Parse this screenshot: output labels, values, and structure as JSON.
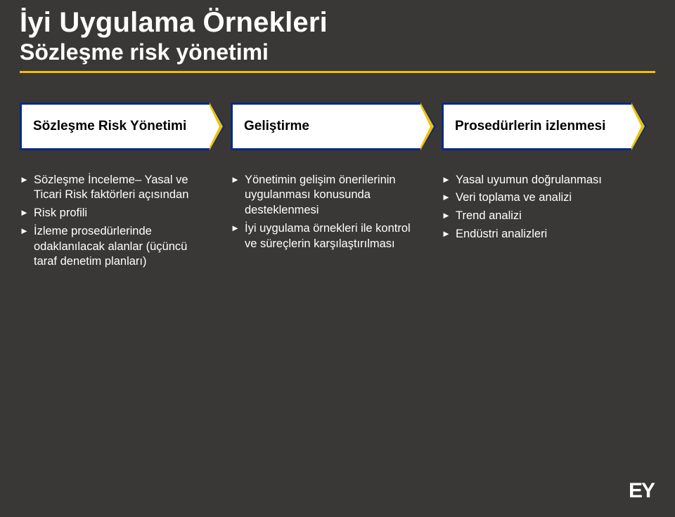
{
  "background_color": "#3a3836",
  "accent_color": "#f0c000",
  "chevron_border_color": "#0a2a80",
  "text_color": "#ffffff",
  "title": "İyi Uygulama Örnekleri",
  "subtitle": "Sözleşme risk yönetimi",
  "chevrons": [
    {
      "label": "Sözleşme Risk Yönetimi"
    },
    {
      "label": "Geliştirme"
    },
    {
      "label": "Prosedürlerin izlenmesi"
    }
  ],
  "columns": [
    {
      "items": [
        "Sözleşme İnceleme– Yasal ve Ticari Risk faktörleri açısından",
        "Risk profili",
        "İzleme prosedürlerinde odaklanılacak alanlar (üçüncü taraf denetim planları)"
      ]
    },
    {
      "items": [
        "Yönetimin gelişim önerilerinin uygulanması konusunda desteklenmesi",
        "İyi uygulama örnekleri ile kontrol ve süreçlerin karşılaştırılması"
      ]
    },
    {
      "items": [
        "Yasal uyumun doğrulanması",
        "Veri toplama ve analizi",
        "Trend analizi",
        "Endüstri analizleri"
      ]
    }
  ],
  "logo_text": "EY"
}
